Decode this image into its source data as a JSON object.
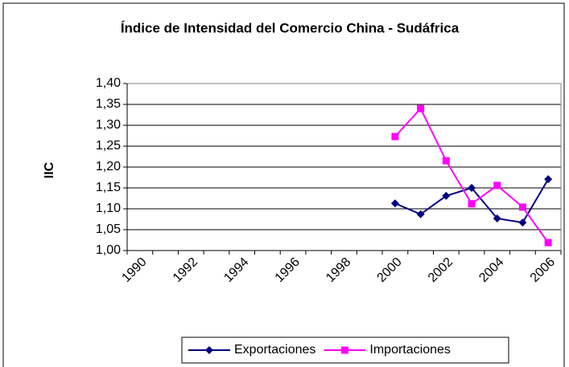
{
  "chart_data": {
    "type": "line",
    "title": "Índice de Intensidad del Comercio China - Sudáfrica",
    "y_label": "IIC",
    "categories": [
      "1990",
      null,
      "1992",
      null,
      "1994",
      null,
      "1996",
      null,
      "1998",
      null,
      "2000",
      null,
      "2002",
      null,
      "2004",
      null,
      "2006"
    ],
    "x_labels_at": [
      "1990",
      "1992",
      "1994",
      "1996",
      "1998",
      "2000",
      "2002",
      "2004",
      "2006"
    ],
    "series": [
      {
        "name": "Exportaciones",
        "color": "#000080",
        "marker": "diamond",
        "values": [
          null,
          null,
          null,
          null,
          null,
          null,
          null,
          null,
          null,
          null,
          1.113,
          1.087,
          1.131,
          1.15,
          1.077,
          1.067,
          1.171
        ]
      },
      {
        "name": "Importaciones",
        "color": "#ff00ff",
        "marker": "square",
        "values": [
          null,
          null,
          null,
          null,
          null,
          null,
          null,
          null,
          null,
          null,
          1.273,
          1.34,
          1.215,
          1.112,
          1.156,
          1.104,
          1.019
        ]
      }
    ],
    "ylim": [
      1.0,
      1.4
    ],
    "yticks": [
      {
        "value": 1.0,
        "label": "1,00"
      },
      {
        "value": 1.05,
        "label": "1,05"
      },
      {
        "value": 1.1,
        "label": "1,10"
      },
      {
        "value": 1.15,
        "label": "1,15"
      },
      {
        "value": 1.2,
        "label": "1,20"
      },
      {
        "value": 1.25,
        "label": "1,25"
      },
      {
        "value": 1.3,
        "label": "1,30"
      },
      {
        "value": 1.35,
        "label": "1,35"
      },
      {
        "value": 1.4,
        "label": "1,40"
      }
    ],
    "grid": true,
    "legend": "bottom"
  }
}
